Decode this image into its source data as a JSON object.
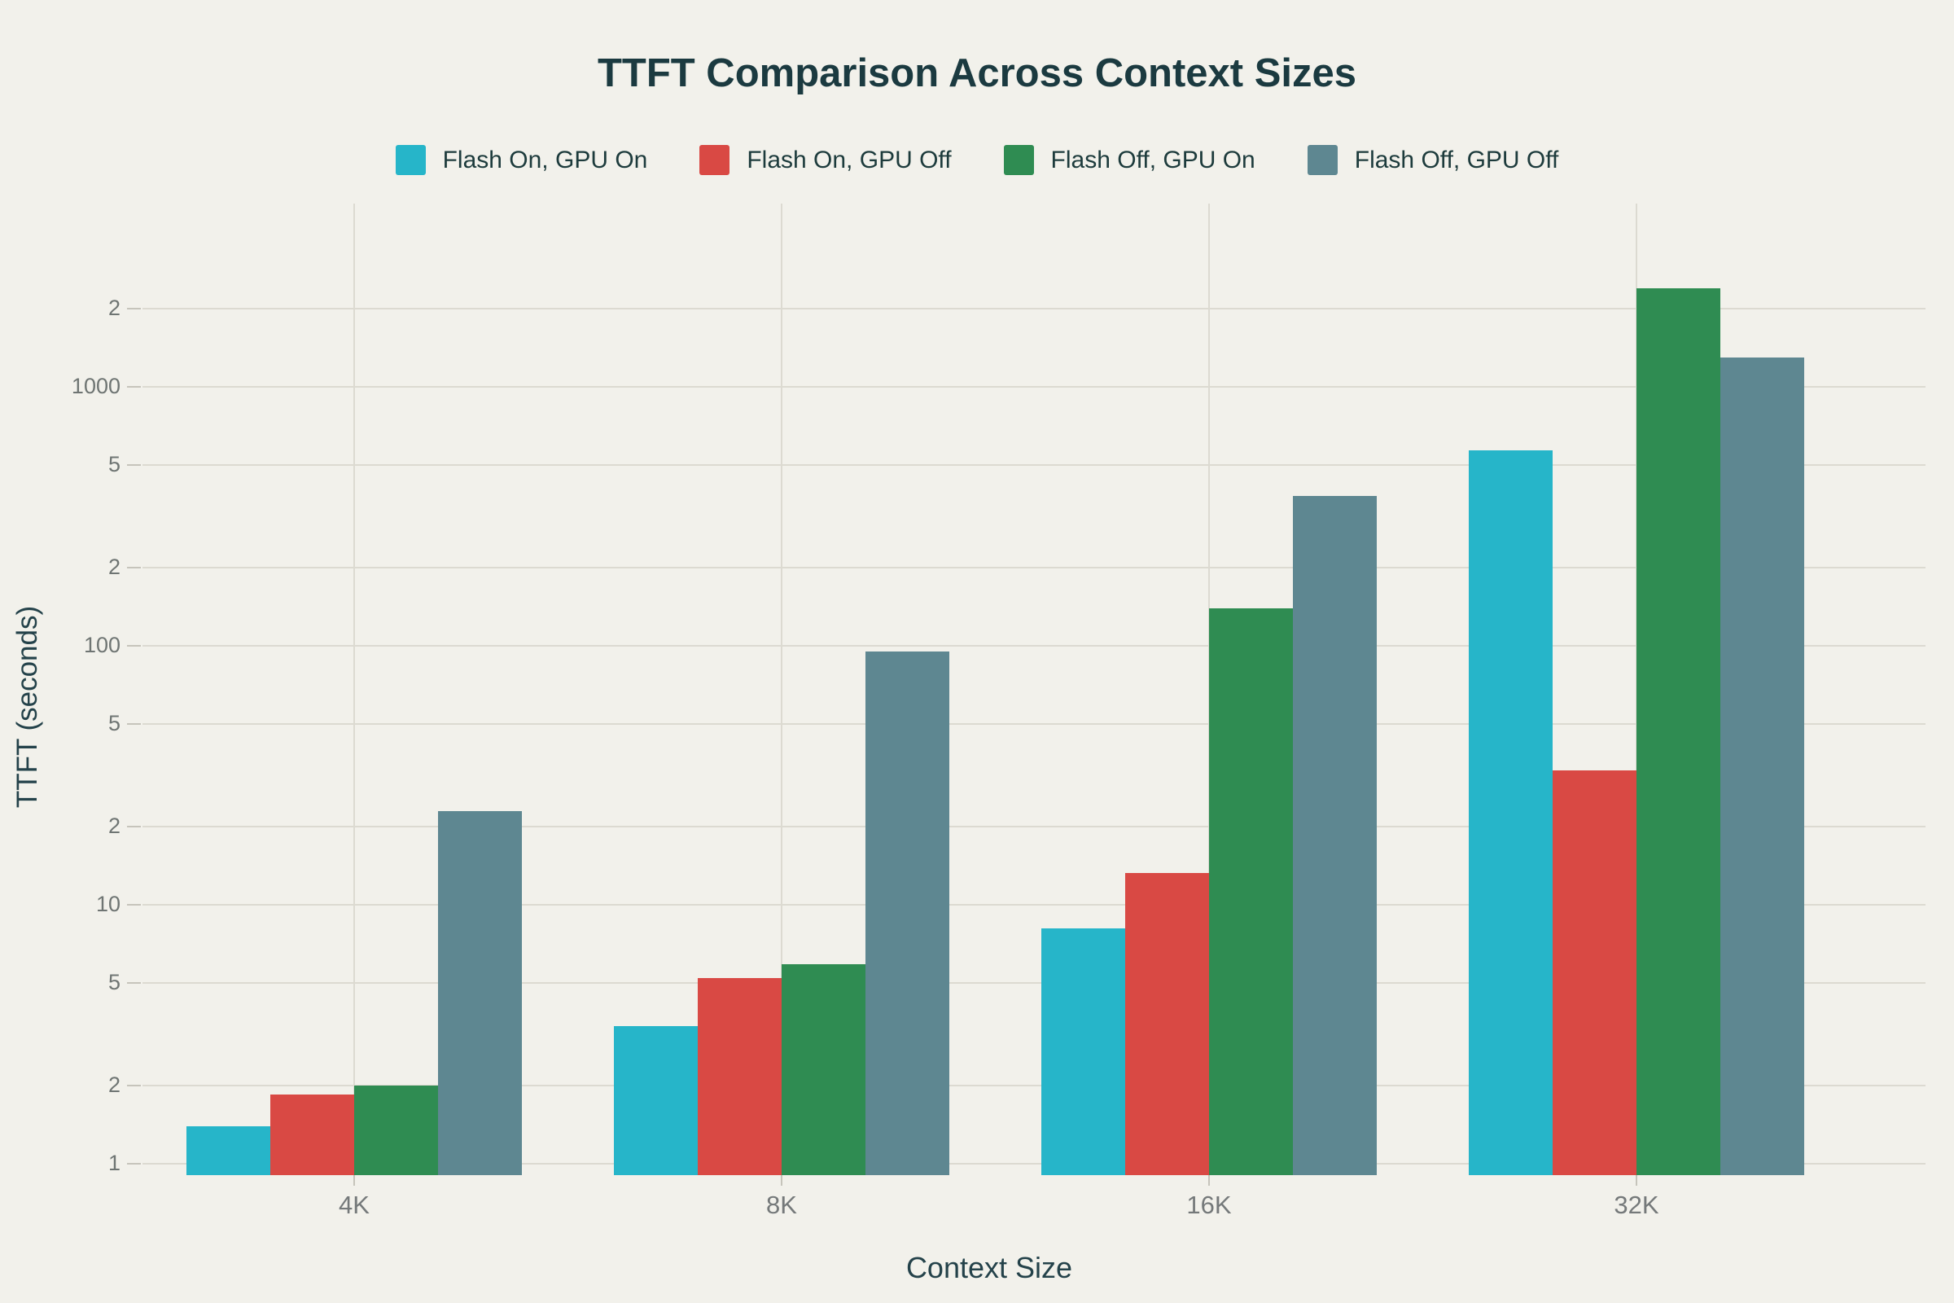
{
  "title": "TTFT Comparison Across Context Sizes",
  "legend": [
    {
      "label": "Flash On, GPU On",
      "color": "#26b5c9"
    },
    {
      "label": "Flash On, GPU Off",
      "color": "#d94944"
    },
    {
      "label": "Flash Off, GPU On",
      "color": "#2f8c52"
    },
    {
      "label": "Flash Off, GPU Off",
      "color": "#5e8791"
    }
  ],
  "chart_data": {
    "type": "bar",
    "title": "TTFT Comparison Across Context Sizes",
    "xlabel": "Context Size",
    "ylabel": "TTFT (seconds)",
    "yscale": "log",
    "ylim": [
      0.9,
      5000
    ],
    "grid": true,
    "legend_position": "top-center",
    "categories": [
      "4K",
      "8K",
      "16K",
      "32K"
    ],
    "series": [
      {
        "name": "Flash On, GPU On",
        "color": "#26b5c9",
        "values": [
          1.4,
          3.4,
          8.1,
          570
        ]
      },
      {
        "name": "Flash On, GPU Off",
        "color": "#d94944",
        "values": [
          1.85,
          5.2,
          13.3,
          33
        ]
      },
      {
        "name": "Flash Off, GPU On",
        "color": "#2f8c52",
        "values": [
          2.0,
          5.9,
          140,
          2400
        ]
      },
      {
        "name": "Flash Off, GPU Off",
        "color": "#5e8791",
        "values": [
          23,
          95,
          380,
          1300
        ]
      }
    ],
    "y_ticks": [
      {
        "value": 1,
        "label": "1"
      },
      {
        "value": 2,
        "label": "2"
      },
      {
        "value": 5,
        "label": "5"
      },
      {
        "value": 10,
        "label": "10"
      },
      {
        "value": 20,
        "label": "2"
      },
      {
        "value": 50,
        "label": "5"
      },
      {
        "value": 100,
        "label": "100"
      },
      {
        "value": 200,
        "label": "2"
      },
      {
        "value": 500,
        "label": "5"
      },
      {
        "value": 1000,
        "label": "1000"
      },
      {
        "value": 2000,
        "label": "2"
      }
    ]
  }
}
